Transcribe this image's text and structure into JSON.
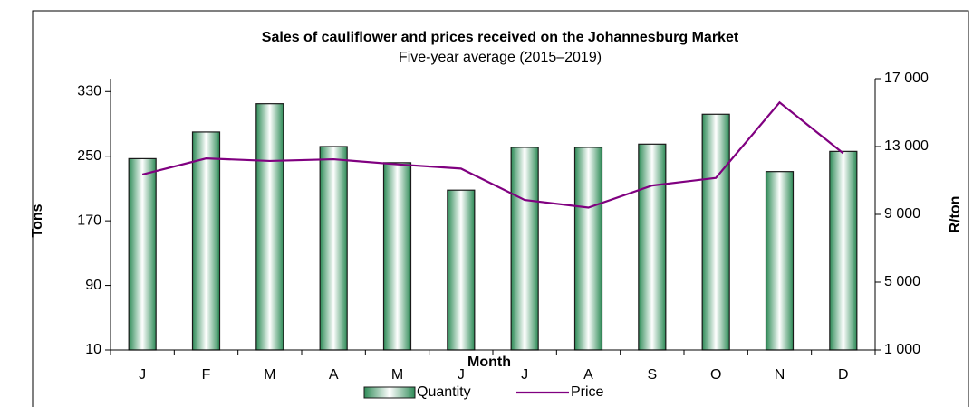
{
  "chart_data": {
    "type": "bar_line",
    "title": "Sales of cauliflower and prices received on the Johannesburg Market",
    "subtitle": "Five-year average (2015–2019)",
    "x_label": "Month",
    "y_label": "Tons",
    "y2_label": "R/ton",
    "categories": [
      "J",
      "F",
      "M",
      "A",
      "M",
      "J",
      "J",
      "A",
      "S",
      "O",
      "N",
      "D"
    ],
    "series": [
      {
        "name": "Quantity",
        "color": "#2e8b57",
        "values": [
          247,
          280,
          315,
          262,
          242,
          208,
          261,
          261,
          265,
          302,
          231,
          256
        ]
      },
      {
        "name": "Price",
        "color": "#800080",
        "axis": "y2",
        "values": [
          11350,
          12300,
          12150,
          12250,
          11950,
          11700,
          9850,
          9400,
          10700,
          11150,
          15600,
          12600
        ]
      }
    ],
    "ylim": [
      10,
      346
    ],
    "yticks": [
      10,
      90,
      170,
      250,
      330
    ],
    "y2lim": [
      1000,
      17000
    ],
    "y2ticks": [
      {
        "value": 1000,
        "label": "1 000"
      },
      {
        "value": 5000,
        "label": "5 000"
      },
      {
        "value": 9000,
        "label": "9 000"
      },
      {
        "value": 13000,
        "label": "13 000"
      },
      {
        "value": 17000,
        "label": "17 000"
      }
    ],
    "legend": "bottom"
  }
}
